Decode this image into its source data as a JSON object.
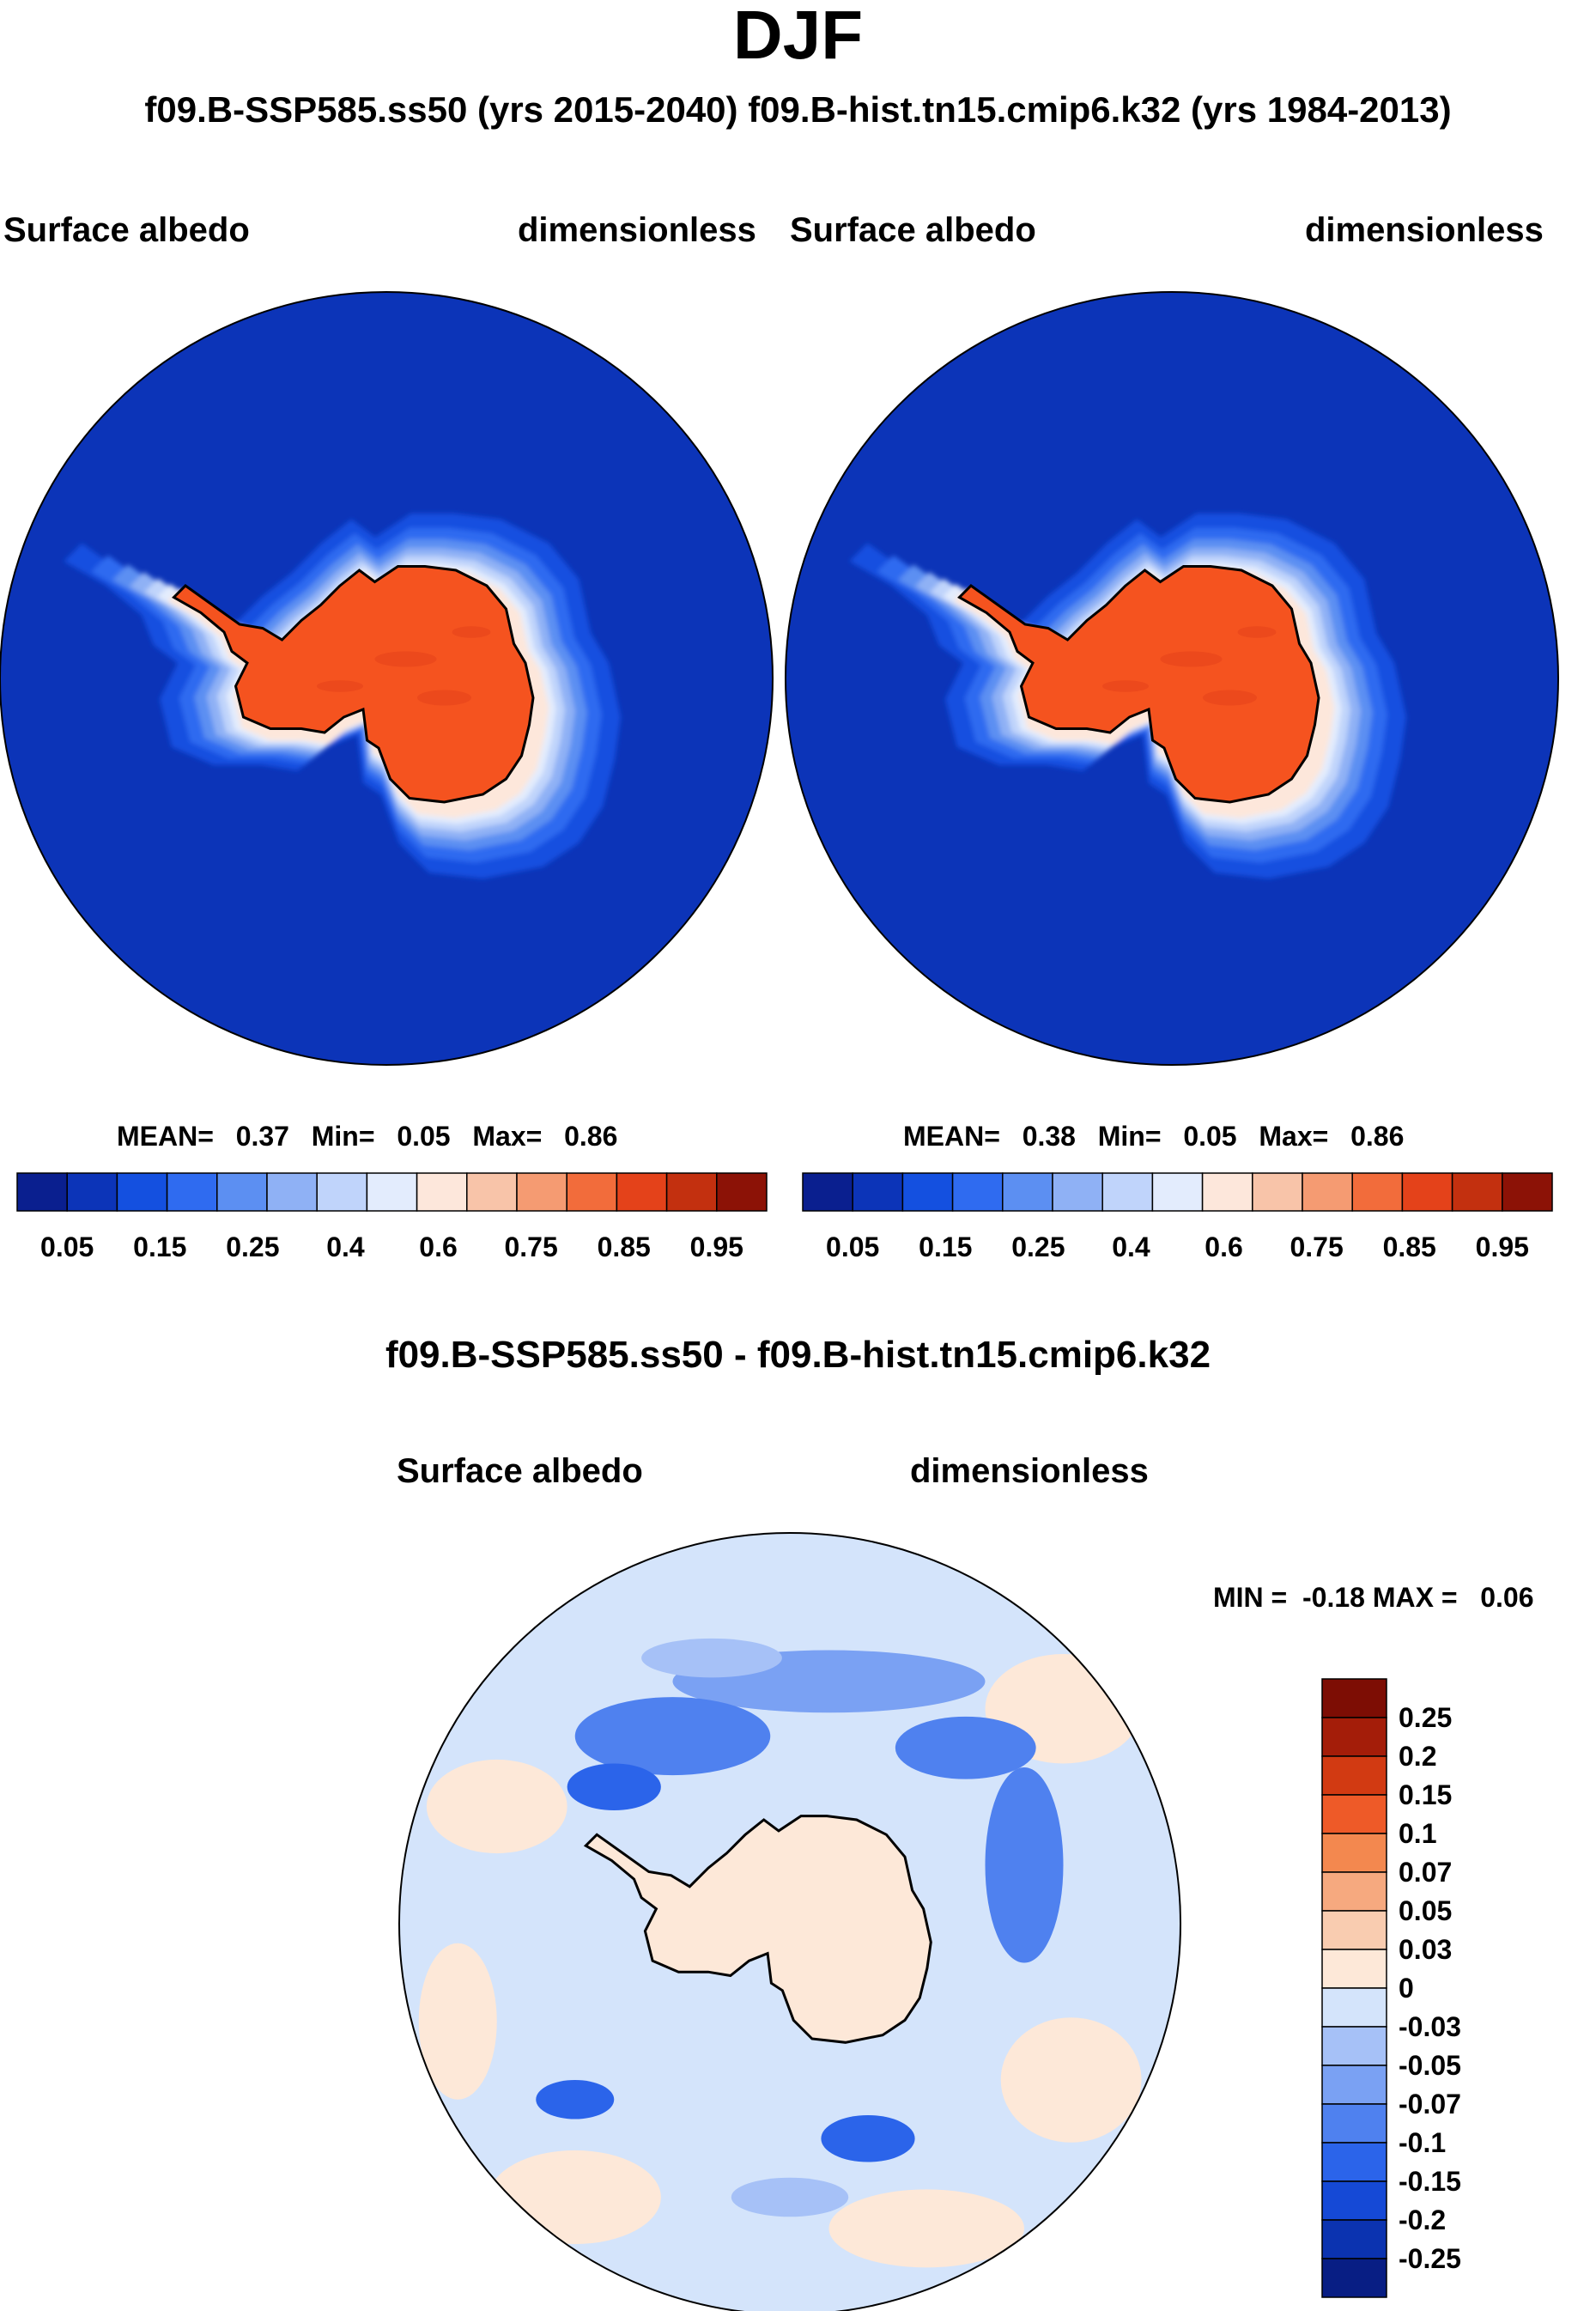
{
  "header": {
    "season": "DJF",
    "subtitle": "f09.B-SSP585.ss50 (yrs 2015-2040)  f09.B-hist.tn15.cmip6.k32 (yrs 1984-2013)"
  },
  "colors": {
    "abs_levels": [
      "#0a1f8f",
      "#0c34b8",
      "#1450e0",
      "#2f6bf0",
      "#5c8ff2",
      "#8fb1f5",
      "#c0d4fb",
      "#e3ecfd",
      "#fde7db",
      "#f8c4a9",
      "#f59b72",
      "#f26c3b",
      "#e4421a",
      "#c3300f",
      "#8c1206"
    ],
    "diff_levels": [
      "#081e84",
      "#0b33b0",
      "#1549d6",
      "#2b64ea",
      "#4f81ef",
      "#7aa1f3",
      "#a6c1f7",
      "#d4e4fb",
      "#fde8d8",
      "#f9ccb0",
      "#f6a97f",
      "#f3884f",
      "#ee5a28",
      "#d23a12",
      "#a41d09",
      "#7d0d04"
    ],
    "land_ice": "#f5531f",
    "ocean": "#0b2dad"
  },
  "chart_data": [
    {
      "type": "heatmap",
      "projection": "south-polar-stereographic",
      "left_label": "Surface albedo",
      "right_label": "dimensionless",
      "stats": {
        "mean_label": "MEAN=",
        "mean": "0.37",
        "min_label": "Min=",
        "min": "0.05",
        "max_label": "Max=",
        "max": "0.86"
      },
      "colorbar": {
        "orientation": "horizontal",
        "tick_labels": [
          "0.05",
          "0.15",
          "0.25",
          "0.4",
          "0.6",
          "0.75",
          "0.85",
          "0.95"
        ]
      }
    },
    {
      "type": "heatmap",
      "projection": "south-polar-stereographic",
      "left_label": "Surface albedo",
      "right_label": "dimensionless",
      "stats": {
        "mean_label": "MEAN=",
        "mean": "0.38",
        "min_label": "Min=",
        "min": "0.05",
        "max_label": "Max=",
        "max": "0.86"
      },
      "colorbar": {
        "orientation": "horizontal",
        "tick_labels": [
          "0.05",
          "0.15",
          "0.25",
          "0.4",
          "0.6",
          "0.75",
          "0.85",
          "0.95"
        ]
      }
    },
    {
      "type": "heatmap",
      "projection": "south-polar-stereographic",
      "title": "f09.B-SSP585.ss50 - f09.B-hist.tn15.cmip6.k32",
      "left_label": "Surface albedo",
      "right_label": "dimensionless",
      "min_max_text": "MIN =  -0.18 MAX =   0.06",
      "colorbar": {
        "orientation": "vertical",
        "tick_labels": [
          "0.25",
          "0.2",
          "0.15",
          "0.1",
          "0.07",
          "0.05",
          "0.03",
          "0",
          "-0.03",
          "-0.05",
          "-0.07",
          "-0.1",
          "-0.15",
          "-0.2",
          "-0.25"
        ]
      }
    }
  ]
}
